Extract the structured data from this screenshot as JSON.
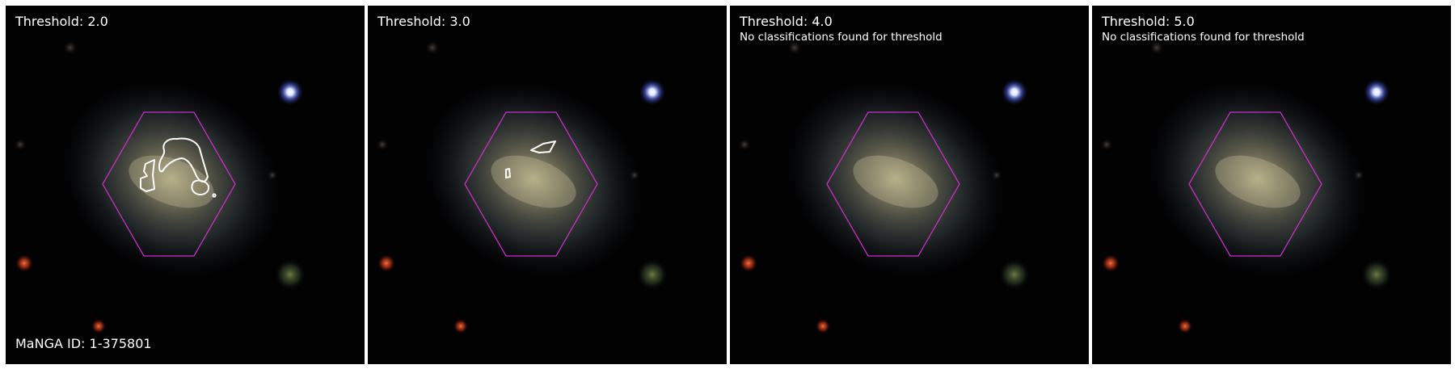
{
  "figure": {
    "manga_id_label": "MaNGA ID: 1-375801",
    "panels": [
      {
        "threshold_label": "Threshold: 2.0",
        "message": "",
        "has_contours": true,
        "contour_count": 4
      },
      {
        "threshold_label": "Threshold: 3.0",
        "message": "",
        "has_contours": true,
        "contour_count": 2
      },
      {
        "threshold_label": "Threshold: 4.0",
        "message": "No classifications found for threshold",
        "has_contours": false,
        "contour_count": 0
      },
      {
        "threshold_label": "Threshold: 5.0",
        "message": "No classifications found for threshold",
        "has_contours": false,
        "contour_count": 0
      }
    ]
  },
  "colors": {
    "background": "#020203",
    "hexagon_outline": "#c62fc6",
    "contour": "#ffffff",
    "text": "#ffffff"
  }
}
